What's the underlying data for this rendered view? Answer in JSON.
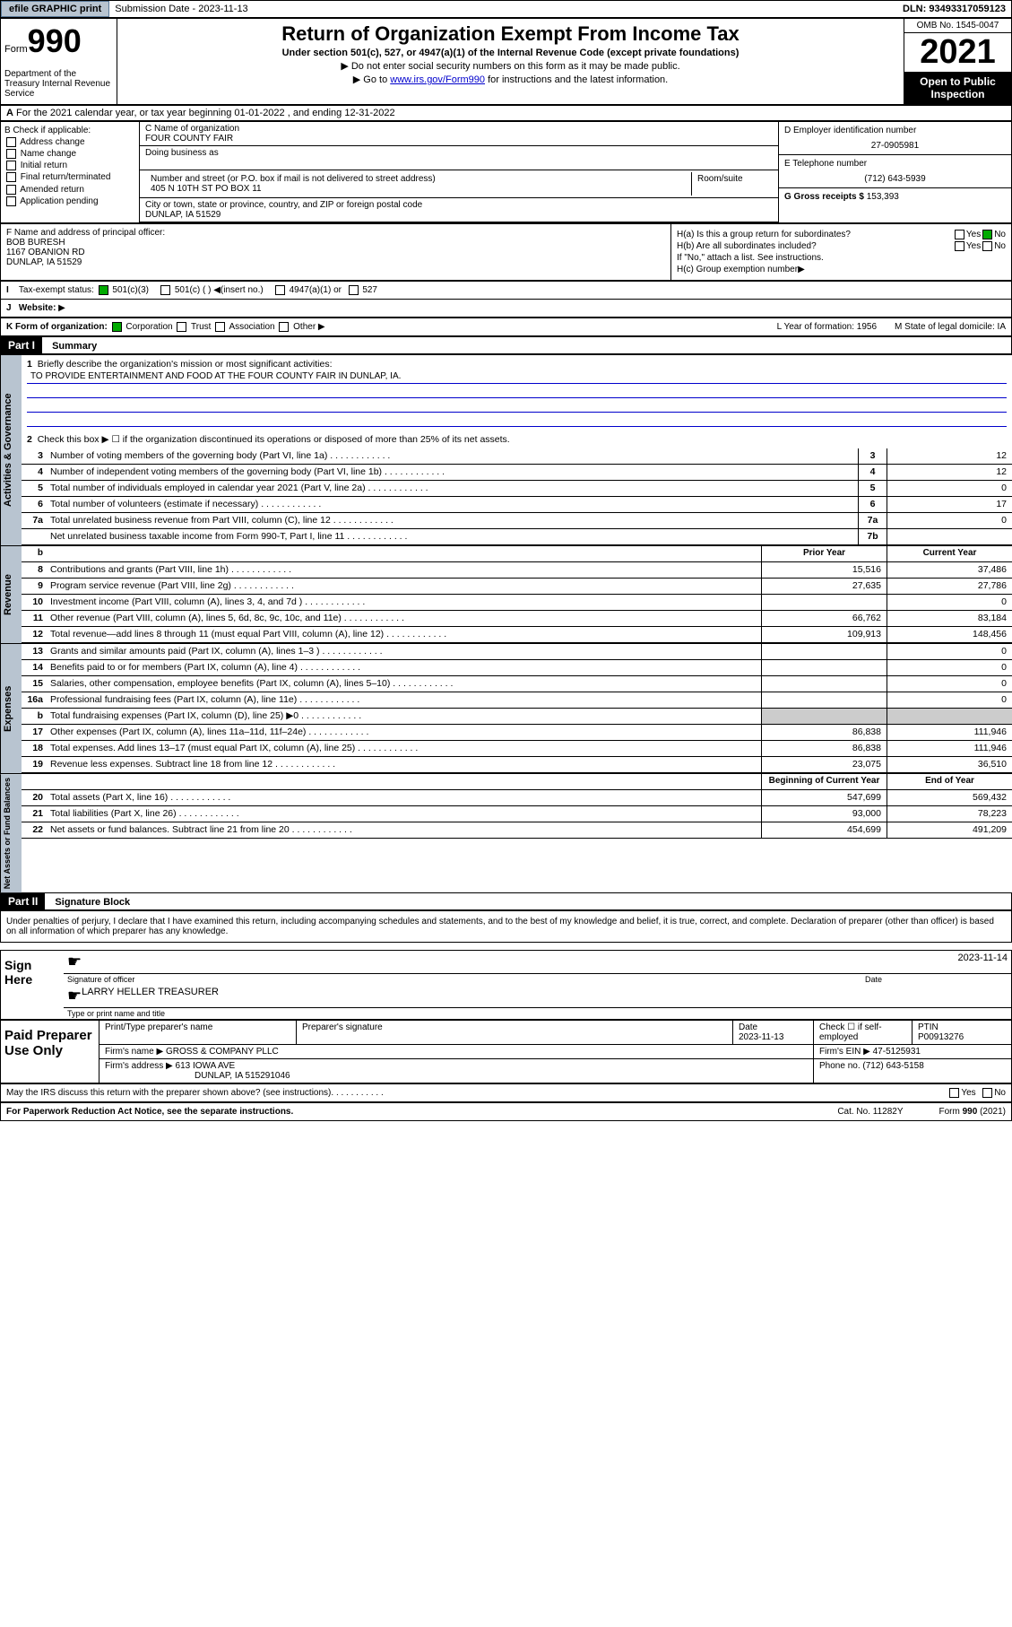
{
  "topbar": {
    "efile": "efile GRAPHIC print",
    "sub_label": "Submission Date - 2023-11-13",
    "dln": "DLN: 93493317059123"
  },
  "header": {
    "form_word": "Form",
    "form_num": "990",
    "dept": "Department of the Treasury Internal Revenue Service",
    "main_title": "Return of Organization Exempt From Income Tax",
    "subtitle": "Under section 501(c), 527, or 4947(a)(1) of the Internal Revenue Code (except private foundations)",
    "inst1": "Do not enter social security numbers on this form as it may be made public.",
    "inst2_pre": "Go to ",
    "inst2_link": "www.irs.gov/Form990",
    "inst2_post": " for instructions and the latest information.",
    "omb": "OMB No. 1545-0047",
    "year": "2021",
    "open": "Open to Public Inspection"
  },
  "row_a": "For the 2021 calendar year, or tax year beginning 01-01-2022     , and ending 12-31-2022",
  "b": {
    "title": "B Check if applicable:",
    "opts": [
      "Address change",
      "Name change",
      "Initial return",
      "Final return/terminated",
      "Amended return",
      "Application pending"
    ]
  },
  "c": {
    "name_label": "C Name of organization",
    "name": "FOUR COUNTY FAIR",
    "dba_label": "Doing business as",
    "addr_label": "Number and street (or P.O. box if mail is not delivered to street address)",
    "room_label": "Room/suite",
    "addr": "405 N 10TH ST PO BOX 11",
    "city_label": "City or town, state or province, country, and ZIP or foreign postal code",
    "city": "DUNLAP, IA  51529"
  },
  "d": {
    "ein_label": "D Employer identification number",
    "ein": "27-0905981",
    "tel_label": "E Telephone number",
    "tel": "(712) 643-5939",
    "gross_label": "G Gross receipts $",
    "gross": "153,393"
  },
  "f": {
    "label": "F  Name and address of principal officer:",
    "name": "BOB BURESH",
    "addr1": "1167 OBANION RD",
    "addr2": "DUNLAP, IA  51529"
  },
  "h": {
    "a_label": "H(a)  Is this a group return for subordinates?",
    "b_label": "H(b)  Are all subordinates included?",
    "b_note": "If \"No,\" attach a list. See instructions.",
    "c_label": "H(c)  Group exemption number",
    "yes": "Yes",
    "no": "No"
  },
  "i": {
    "label": "Tax-exempt status:",
    "opt1": "501(c)(3)",
    "opt2": "501(c) (   )",
    "opt2b": "(insert no.)",
    "opt3": "4947(a)(1) or",
    "opt4": "527"
  },
  "j": {
    "label": "Website:"
  },
  "k": {
    "label": "K Form of organization:",
    "opts": [
      "Corporation",
      "Trust",
      "Association",
      "Other"
    ],
    "l_label": "L Year of formation: 1956",
    "m_label": "M State of legal domicile: IA"
  },
  "part1": {
    "header": "Part I",
    "title": "Summary",
    "q1": "Briefly describe the organization's mission or most significant activities:",
    "mission": "TO PROVIDE ENTERTAINMENT AND FOOD AT THE FOUR COUNTY FAIR IN DUNLAP, IA.",
    "q2": "Check this box ▶ ☐  if the organization discontinued its operations or disposed of more than 25% of its net assets.",
    "lines_gov": [
      {
        "n": "3",
        "t": "Number of voting members of the governing body (Part VI, line 1a)",
        "r": "3",
        "v": "12"
      },
      {
        "n": "4",
        "t": "Number of independent voting members of the governing body (Part VI, line 1b)",
        "r": "4",
        "v": "12"
      },
      {
        "n": "5",
        "t": "Total number of individuals employed in calendar year 2021 (Part V, line 2a)",
        "r": "5",
        "v": "0"
      },
      {
        "n": "6",
        "t": "Total number of volunteers (estimate if necessary)",
        "r": "6",
        "v": "17"
      },
      {
        "n": "7a",
        "t": "Total unrelated business revenue from Part VIII, column (C), line 12",
        "r": "7a",
        "v": "0"
      },
      {
        "n": "",
        "t": "Net unrelated business taxable income from Form 990-T, Part I, line 11",
        "r": "7b",
        "v": ""
      }
    ],
    "col_prior": "Prior Year",
    "col_current": "Current Year",
    "lines_rev": [
      {
        "n": "8",
        "t": "Contributions and grants (Part VIII, line 1h)",
        "p": "15,516",
        "c": "37,486"
      },
      {
        "n": "9",
        "t": "Program service revenue (Part VIII, line 2g)",
        "p": "27,635",
        "c": "27,786"
      },
      {
        "n": "10",
        "t": "Investment income (Part VIII, column (A), lines 3, 4, and 7d )",
        "p": "",
        "c": "0"
      },
      {
        "n": "11",
        "t": "Other revenue (Part VIII, column (A), lines 5, 6d, 8c, 9c, 10c, and 11e)",
        "p": "66,762",
        "c": "83,184"
      },
      {
        "n": "12",
        "t": "Total revenue—add lines 8 through 11 (must equal Part VIII, column (A), line 12)",
        "p": "109,913",
        "c": "148,456"
      }
    ],
    "lines_exp": [
      {
        "n": "13",
        "t": "Grants and similar amounts paid (Part IX, column (A), lines 1–3 )",
        "p": "",
        "c": "0"
      },
      {
        "n": "14",
        "t": "Benefits paid to or for members (Part IX, column (A), line 4)",
        "p": "",
        "c": "0"
      },
      {
        "n": "15",
        "t": "Salaries, other compensation, employee benefits (Part IX, column (A), lines 5–10)",
        "p": "",
        "c": "0"
      },
      {
        "n": "16a",
        "t": "Professional fundraising fees (Part IX, column (A), line 11e)",
        "p": "",
        "c": "0"
      },
      {
        "n": "b",
        "t": "Total fundraising expenses (Part IX, column (D), line 25) ▶0",
        "p": "gray",
        "c": "gray"
      },
      {
        "n": "17",
        "t": "Other expenses (Part IX, column (A), lines 11a–11d, 11f–24e)",
        "p": "86,838",
        "c": "111,946"
      },
      {
        "n": "18",
        "t": "Total expenses. Add lines 13–17 (must equal Part IX, column (A), line 25)",
        "p": "86,838",
        "c": "111,946"
      },
      {
        "n": "19",
        "t": "Revenue less expenses. Subtract line 18 from line 12",
        "p": "23,075",
        "c": "36,510"
      }
    ],
    "col_begin": "Beginning of Current Year",
    "col_end": "End of Year",
    "lines_net": [
      {
        "n": "20",
        "t": "Total assets (Part X, line 16)",
        "p": "547,699",
        "c": "569,432"
      },
      {
        "n": "21",
        "t": "Total liabilities (Part X, line 26)",
        "p": "93,000",
        "c": "78,223"
      },
      {
        "n": "22",
        "t": "Net assets or fund balances. Subtract line 21 from line 20",
        "p": "454,699",
        "c": "491,209"
      }
    ]
  },
  "part2": {
    "header": "Part II",
    "title": "Signature Block",
    "penalty": "Under penalties of perjury, I declare that I have examined this return, including accompanying schedules and statements, and to the best of my knowledge and belief, it is true, correct, and complete. Declaration of preparer (other than officer) is based on all information of which preparer has any knowledge.",
    "sign_here": "Sign Here",
    "sig_officer": "Signature of officer",
    "sig_date": "2023-11-14",
    "date_label": "Date",
    "officer_name": "LARRY HELLER  TREASURER",
    "type_name": "Type or print name and title",
    "paid": "Paid Preparer Use Only",
    "prep_name_label": "Print/Type preparer's name",
    "prep_sig_label": "Preparer's signature",
    "prep_date_label": "Date",
    "prep_date": "2023-11-13",
    "check_self": "Check ☐ if self-employed",
    "ptin_label": "PTIN",
    "ptin": "P00913276",
    "firm_name_label": "Firm's name    ▶",
    "firm_name": "GROSS & COMPANY PLLC",
    "firm_ein_label": "Firm's EIN ▶",
    "firm_ein": "47-5125931",
    "firm_addr_label": "Firm's address ▶",
    "firm_addr": "613 IOWA AVE",
    "firm_city": "DUNLAP, IA  515291046",
    "phone_label": "Phone no.",
    "phone": "(712) 643-5158",
    "discuss": "May the IRS discuss this return with the preparer shown above? (see instructions)",
    "paperwork": "For Paperwork Reduction Act Notice, see the separate instructions.",
    "catno": "Cat. No. 11282Y",
    "formno": "Form 990 (2021)"
  },
  "vert": {
    "gov": "Activities & Governance",
    "rev": "Revenue",
    "exp": "Expenses",
    "net": "Net Assets or Fund Balances"
  }
}
